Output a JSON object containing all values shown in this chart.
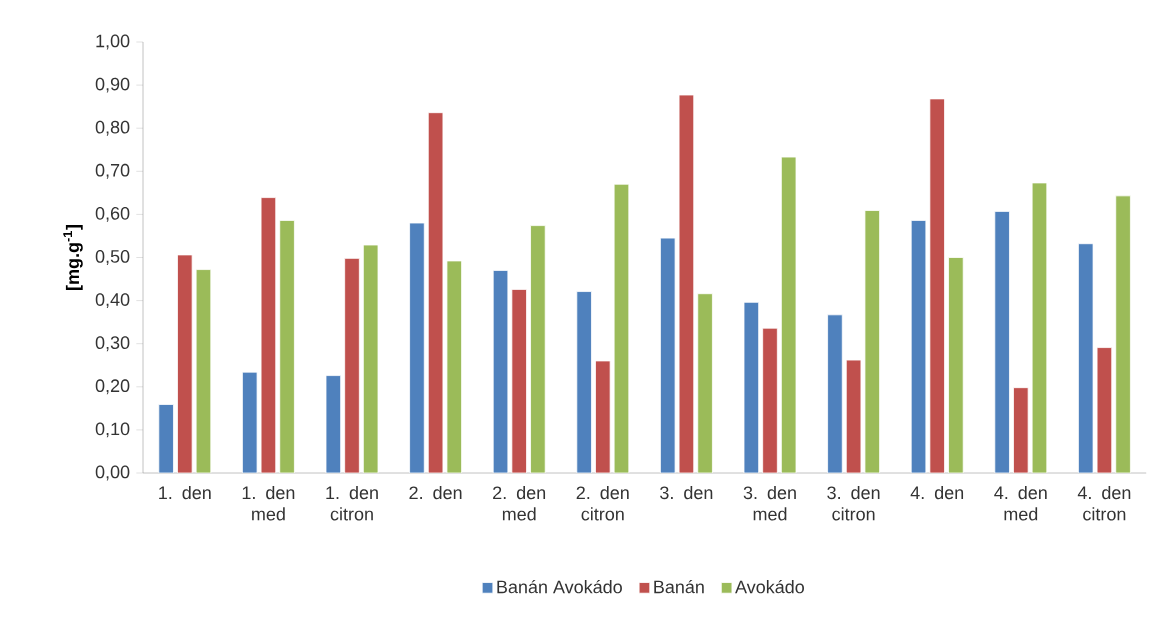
{
  "chart_data": {
    "type": "bar",
    "ylabel": "[mg.g$^{-1}$]",
    "categories": [
      "1. den",
      "1. den med",
      "1. den citron",
      "2. den",
      "2. den med",
      "2. den citron",
      "3. den",
      "3. den med",
      "3. den citron",
      "4. den",
      "4. den med",
      "4. den citron"
    ],
    "series": [
      {
        "name": "Banán Avokádo",
        "color": "#4f81bd",
        "values": [
          0.159,
          0.234,
          0.226,
          0.58,
          0.47,
          0.421,
          0.545,
          0.396,
          0.367,
          0.586,
          0.607,
          0.532
        ]
      },
      {
        "name": "Banán",
        "color": "#c0504d",
        "values": [
          0.506,
          0.639,
          0.498,
          0.836,
          0.426,
          0.26,
          0.877,
          0.336,
          0.262,
          0.868,
          0.198,
          0.291
        ]
      },
      {
        "name": "Avokádo",
        "color": "#9bbb59",
        "values": [
          0.472,
          0.586,
          0.529,
          0.492,
          0.574,
          0.67,
          0.416,
          0.733,
          0.609,
          0.5,
          0.673,
          0.643
        ]
      }
    ],
    "ylim": [
      0,
      1
    ],
    "yticks": [
      {
        "value": 0,
        "label": "0,00"
      },
      {
        "value": 0.1,
        "label": "0,10"
      },
      {
        "value": 0.2,
        "label": "0,20"
      },
      {
        "value": 0.3,
        "label": "0,30"
      },
      {
        "value": 0.4,
        "label": "0,40"
      },
      {
        "value": 0.5,
        "label": "0,50"
      },
      {
        "value": 0.6,
        "label": "0,60"
      },
      {
        "value": 0.7,
        "label": "0,70"
      },
      {
        "value": 0.8,
        "label": "0,80"
      },
      {
        "value": 0.9,
        "label": "0,90"
      },
      {
        "value": 1.0,
        "label": "1,00"
      }
    ],
    "grid": false,
    "legend": "bottom"
  }
}
